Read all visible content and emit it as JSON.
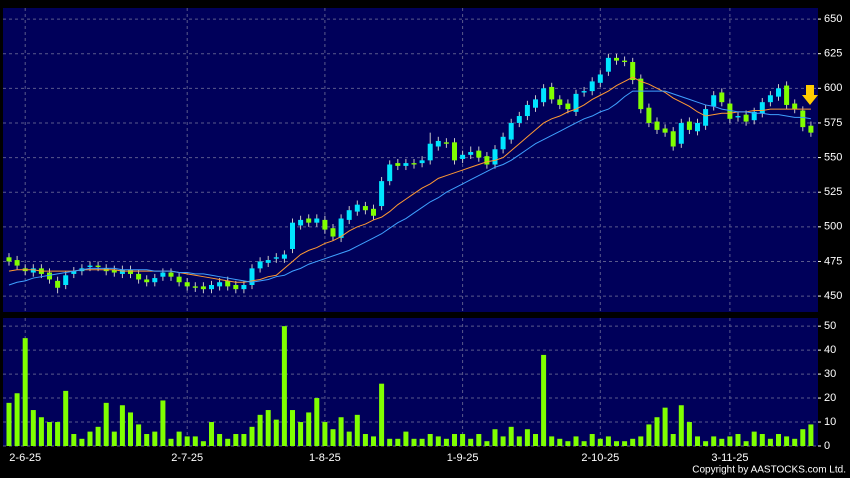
{
  "copyright": "Copyright by AASTOCKS.com Ltd.",
  "chart_data": [
    {
      "type": "candlestick",
      "up_color": "#00e5ff",
      "down_color": "#80ff00",
      "grid": true,
      "ylim": [
        438.5,
        658
      ],
      "yticks": [
        450,
        475,
        500,
        525,
        550,
        575,
        600,
        625,
        650
      ],
      "open": [
        478,
        476,
        470,
        467,
        470,
        467,
        461,
        458,
        466,
        468,
        471,
        472,
        470,
        469,
        466,
        469,
        466,
        462,
        460,
        464,
        467,
        464,
        460,
        457,
        457,
        455,
        457,
        461,
        458,
        455,
        458,
        470,
        474,
        477,
        477,
        484,
        501,
        506,
        503,
        505,
        499,
        492,
        505,
        511,
        515,
        513,
        515,
        533,
        546,
        544,
        546,
        546,
        548,
        558,
        561,
        561,
        549,
        552,
        555,
        551,
        545,
        556,
        563,
        575,
        580,
        586,
        590,
        601,
        592,
        589,
        583,
        597,
        598,
        604,
        612,
        622,
        620,
        619,
        607,
        586,
        576,
        571,
        569,
        560,
        576,
        569,
        573,
        587,
        597,
        589,
        579,
        581,
        577,
        582,
        590,
        594,
        602,
        589,
        584,
        573
      ],
      "high": [
        481,
        479,
        473,
        473,
        473,
        470,
        464,
        468,
        471,
        473,
        475,
        475,
        473,
        472,
        472,
        472,
        469,
        465,
        466,
        470,
        470,
        467,
        463,
        460,
        460,
        461,
        463,
        464,
        461,
        461,
        473,
        478,
        479,
        481,
        483,
        506,
        508,
        509,
        509,
        508,
        502,
        509,
        515,
        519,
        518,
        516,
        536,
        548,
        549,
        549,
        549,
        551,
        568,
        565,
        564,
        564,
        555,
        558,
        558,
        554,
        559,
        568,
        578,
        583,
        591,
        595,
        603,
        604,
        595,
        592,
        599,
        601,
        608,
        613,
        625,
        625,
        623,
        622,
        610,
        589,
        579,
        574,
        572,
        578,
        579,
        578,
        588,
        598,
        600,
        592,
        583,
        584,
        586,
        593,
        598,
        603,
        605,
        592,
        587,
        576
      ],
      "low": [
        472,
        469,
        465,
        464,
        463,
        459,
        452,
        455,
        463,
        465,
        468,
        468,
        465,
        464,
        463,
        463,
        459,
        457,
        457,
        461,
        461,
        457,
        454,
        453,
        452,
        452,
        454,
        454,
        452,
        452,
        455,
        467,
        471,
        474,
        474,
        481,
        498,
        500,
        500,
        495,
        490,
        489,
        502,
        508,
        509,
        505,
        512,
        530,
        541,
        541,
        542,
        543,
        545,
        555,
        557,
        545,
        546,
        549,
        547,
        542,
        542,
        553,
        560,
        572,
        577,
        583,
        587,
        589,
        585,
        582,
        580,
        594,
        595,
        601,
        609,
        617,
        616,
        603,
        582,
        572,
        567,
        565,
        555,
        557,
        567,
        566,
        570,
        584,
        587,
        575,
        576,
        573,
        574,
        579,
        587,
        591,
        585,
        582,
        569,
        565
      ],
      "close": [
        475,
        472,
        468,
        470,
        466,
        462,
        456,
        465,
        468,
        470,
        472,
        471,
        468,
        467,
        469,
        466,
        462,
        460,
        463,
        467,
        464,
        460,
        457,
        456,
        455,
        458,
        460,
        457,
        455,
        458,
        470,
        475,
        476,
        478,
        480,
        503,
        505,
        503,
        506,
        498,
        493,
        506,
        512,
        516,
        512,
        508,
        533,
        545,
        544,
        546,
        545,
        548,
        560,
        562,
        560,
        548,
        552,
        554,
        550,
        545,
        556,
        565,
        575,
        580,
        588,
        592,
        600,
        592,
        588,
        585,
        596,
        598,
        605,
        610,
        622,
        620,
        619,
        606,
        585,
        575,
        570,
        568,
        558,
        575,
        570,
        575,
        585,
        595,
        590,
        578,
        580,
        576,
        583,
        590,
        595,
        600,
        588,
        585,
        572,
        568
      ],
      "lines": [
        {
          "color": "#ff9933",
          "values": [
            468,
            469,
            469,
            469,
            468,
            468,
            468,
            468,
            468,
            469,
            469,
            469,
            469,
            469,
            468,
            468,
            468,
            468,
            468,
            468,
            468,
            467,
            466,
            465,
            464,
            463,
            462,
            461,
            460,
            460,
            461,
            462,
            464,
            465,
            470,
            475,
            480,
            483,
            485,
            488,
            490,
            493,
            497,
            500,
            502,
            505,
            507,
            511,
            516,
            520,
            524,
            528,
            531,
            535,
            537,
            539,
            541,
            543,
            545,
            547,
            548,
            550,
            555,
            560,
            565,
            570,
            575,
            578,
            580,
            583,
            585,
            588,
            592,
            595,
            598,
            602,
            605,
            608,
            605,
            603,
            600,
            597,
            593,
            590,
            587,
            583,
            580,
            581,
            582,
            582,
            583,
            583,
            584,
            584,
            585,
            585,
            585,
            585,
            585,
            585
          ]
        },
        {
          "color": "#3fa0ff",
          "values": [
            458,
            460,
            461,
            463,
            464,
            465,
            466,
            467,
            468,
            469,
            470,
            470,
            470,
            470,
            469,
            469,
            469,
            469,
            468,
            468,
            468,
            467,
            467,
            466,
            466,
            465,
            464,
            463,
            462,
            461,
            460,
            461,
            462,
            464,
            465,
            468,
            470,
            473,
            475,
            477,
            479,
            481,
            483,
            486,
            489,
            492,
            495,
            499,
            503,
            506,
            510,
            514,
            518,
            521,
            525,
            528,
            531,
            534,
            537,
            540,
            543,
            545,
            548,
            552,
            556,
            560,
            563,
            566,
            569,
            572,
            575,
            578,
            580,
            583,
            585,
            589,
            594,
            598,
            598,
            598,
            598,
            598,
            596,
            594,
            592,
            590,
            588,
            587,
            585,
            584,
            583,
            583,
            582,
            582,
            581,
            581,
            580,
            579,
            579,
            578
          ]
        }
      ]
    },
    {
      "type": "bar",
      "color": "#80ff00",
      "grid": true,
      "ylim": [
        0,
        53.4
      ],
      "yticks": [
        0,
        10,
        20,
        30,
        40,
        50
      ],
      "categories": [
        null,
        null,
        "2-6-25",
        null,
        null,
        null,
        null,
        null,
        null,
        null,
        null,
        null,
        null,
        null,
        null,
        null,
        null,
        null,
        null,
        null,
        null,
        null,
        "2-7-25",
        null,
        null,
        null,
        null,
        null,
        null,
        null,
        null,
        null,
        null,
        null,
        null,
        null,
        null,
        null,
        null,
        "1-8-25",
        null,
        null,
        null,
        null,
        null,
        null,
        null,
        null,
        null,
        null,
        null,
        null,
        null,
        null,
        null,
        null,
        "1-9-25",
        null,
        null,
        null,
        null,
        null,
        null,
        null,
        null,
        null,
        null,
        null,
        null,
        null,
        null,
        null,
        null,
        "2-10-25",
        null,
        null,
        null,
        null,
        null,
        null,
        null,
        null,
        null,
        null,
        null,
        null,
        null,
        null,
        null,
        "3-11-25",
        null,
        null,
        null,
        null,
        null,
        null,
        null,
        null,
        null,
        null
      ],
      "values": [
        18,
        22,
        45,
        15,
        12,
        10,
        10,
        23,
        5,
        3,
        6,
        8,
        18,
        6,
        17,
        14,
        9,
        5,
        6,
        19,
        3,
        6,
        4,
        4,
        2,
        10,
        5,
        3,
        5,
        5,
        8,
        13,
        15,
        11,
        50,
        15,
        10,
        14,
        20,
        10,
        7,
        12,
        6,
        13,
        5,
        4,
        26,
        3,
        3,
        6,
        3,
        3,
        5,
        4,
        3,
        5,
        5,
        3,
        5,
        2,
        7,
        4,
        8,
        4,
        7,
        5,
        38,
        4,
        3,
        2,
        4,
        2,
        5,
        3,
        4,
        2,
        2,
        3,
        4,
        9,
        12,
        16,
        5,
        17,
        10,
        4,
        2,
        4,
        3,
        4,
        5,
        2,
        6,
        5,
        3,
        5,
        4,
        3,
        7,
        9
      ]
    }
  ]
}
